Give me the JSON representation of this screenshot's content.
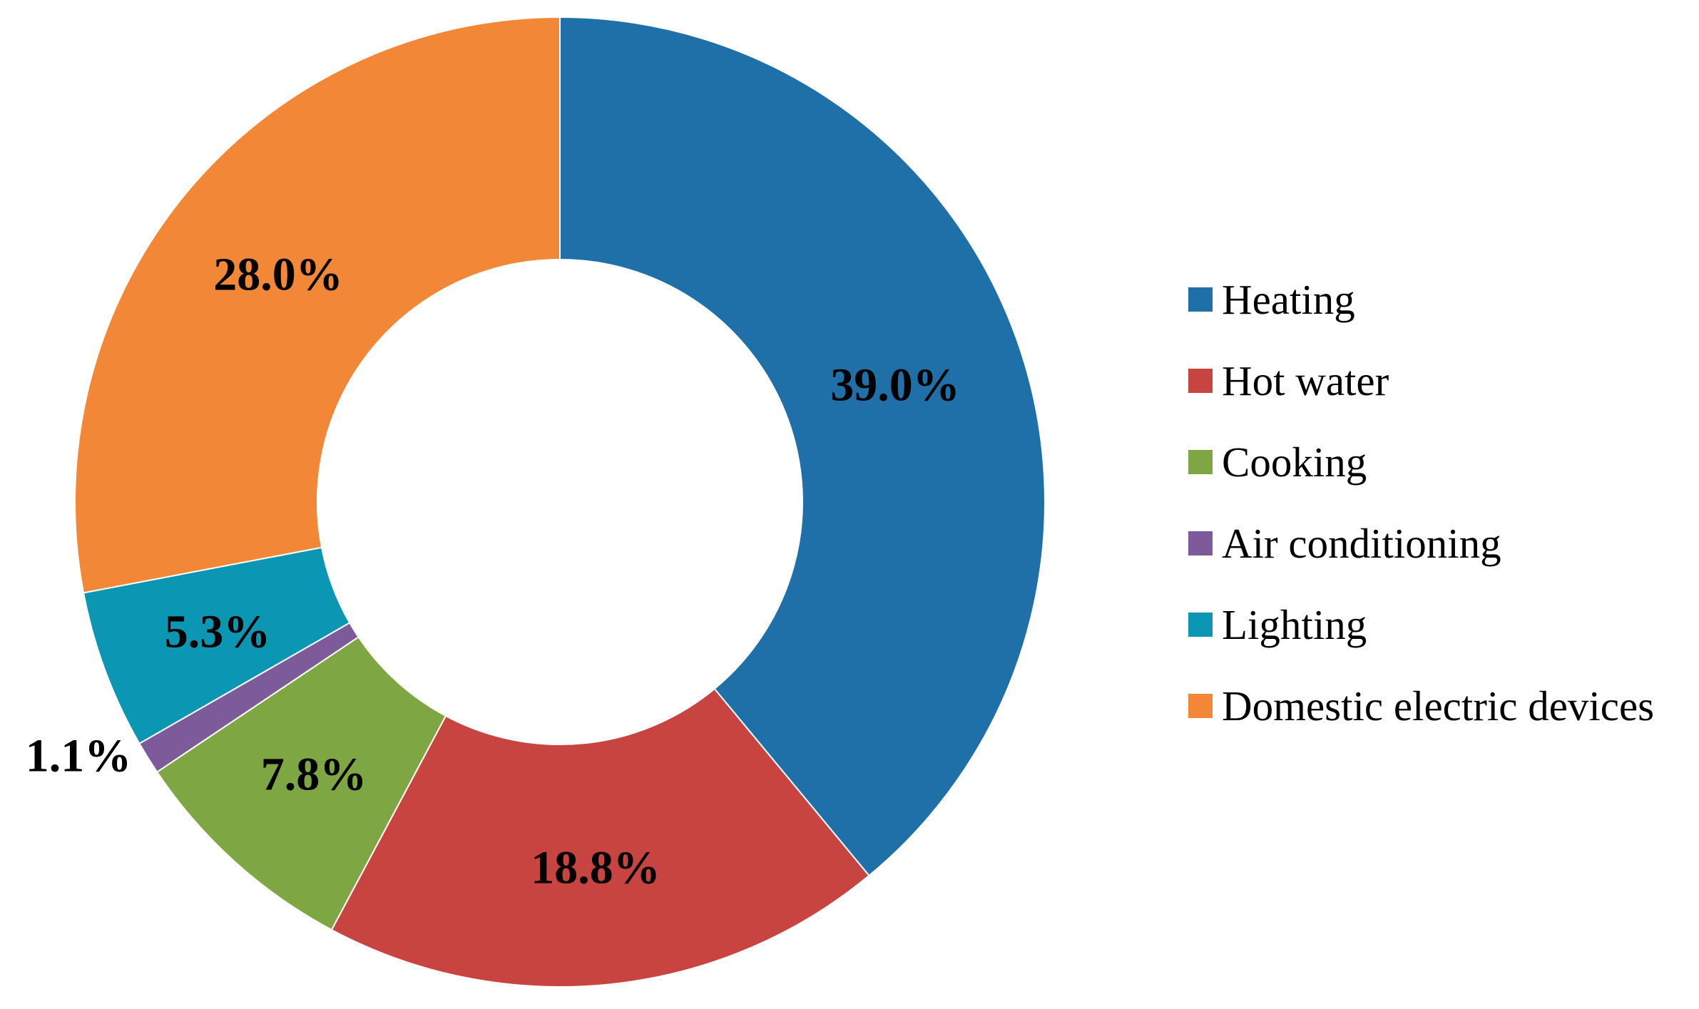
{
  "chart_data": {
    "type": "pie",
    "variant": "donut",
    "categories": [
      "Heating",
      "Hot water",
      "Cooking",
      "Air conditioning",
      "Lighting",
      "Domestic electric devices"
    ],
    "values": [
      39.0,
      18.8,
      7.8,
      1.1,
      5.3,
      28.0
    ],
    "value_labels": [
      "39.0%",
      "18.8%",
      "7.8%",
      "1.1%",
      "5.3%",
      "28.0%"
    ],
    "colors": [
      "#1f6fa8",
      "#c84440",
      "#7ea642",
      "#7d5a9a",
      "#0b97b3",
      "#f28837"
    ],
    "start": "12 o'clock",
    "direction": "clockwise",
    "legend": {
      "position": "right",
      "entries": [
        "Heating",
        "Hot water",
        "Cooking",
        "Air conditioning",
        "Lighting",
        "Domestic electric devices"
      ]
    }
  }
}
